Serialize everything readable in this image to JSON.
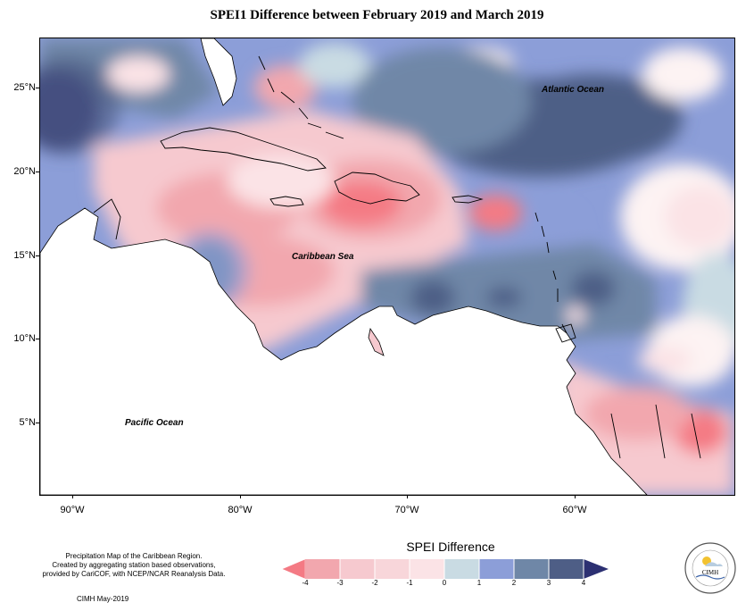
{
  "title": "SPEI1 Difference between February 2019 and March 2019",
  "map": {
    "y_axis_labels": [
      "25°N",
      "20°N",
      "15°N",
      "10°N",
      "5°N"
    ],
    "x_axis_labels": [
      "90°W",
      "80°W",
      "70°W",
      "60°W"
    ],
    "ocean_labels": {
      "atlantic": "Atlantic Ocean",
      "caribbean": "Caribbean Sea",
      "pacific": "Pacific Ocean"
    }
  },
  "legend": {
    "title": "SPEI Difference",
    "ticks": [
      "-4",
      "-3",
      "-2",
      "-1",
      "0",
      "1",
      "2",
      "3",
      "4"
    ],
    "colors": [
      "#f47a84",
      "#f2a7ae",
      "#f6c9cf",
      "#fbe3e6",
      "#fdf3f3",
      "#c9dbe3",
      "#8c9ed8",
      "#6f87a7",
      "#4e5e86",
      "#2c3072"
    ]
  },
  "footer": {
    "description_lines": [
      "Precipitation Map of the Caribbean Region.",
      "Created by aggregating station based observations,",
      "provided by CariCOF, with NCEP/NCAR Reanalysis Data."
    ],
    "credit": "CIMH May-2019"
  },
  "logo": {
    "text": "CIMH",
    "ring_text": "Caribbean Institute for Meteorology and Hydrology"
  }
}
